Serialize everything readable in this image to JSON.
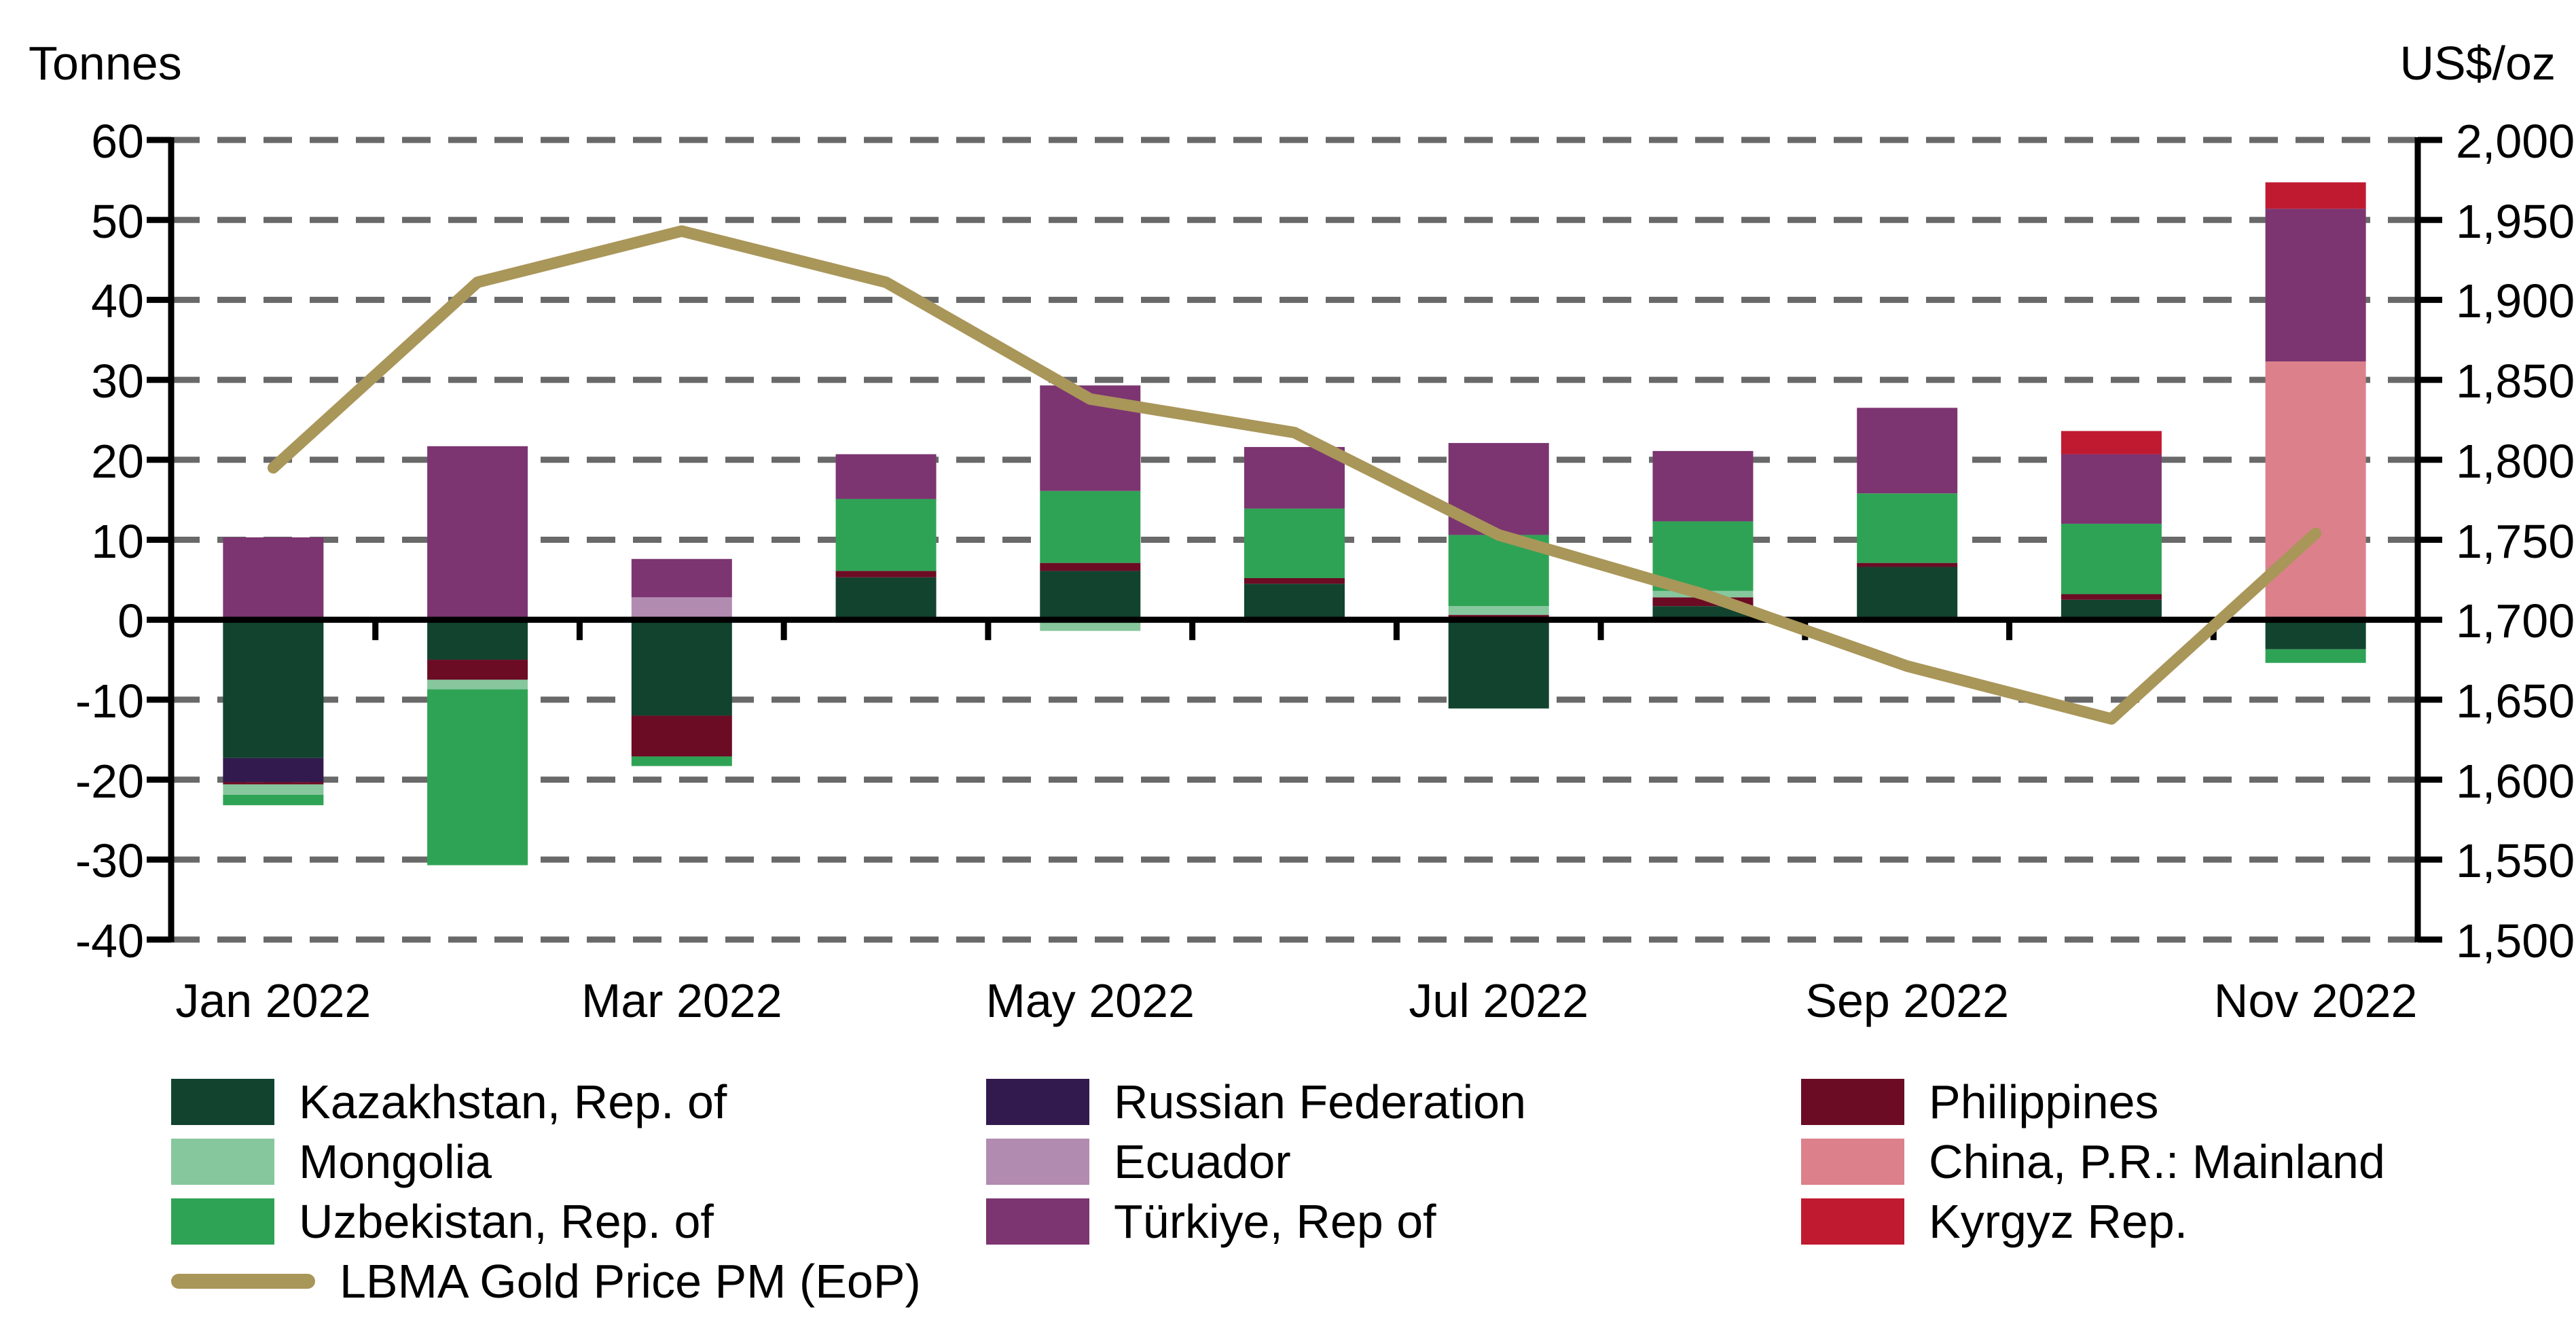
{
  "axes": {
    "left_title": "Tonnes",
    "right_title": "US$/oz",
    "left_tick_values": [
      60,
      50,
      40,
      30,
      20,
      10,
      0,
      -10,
      -20,
      -30,
      -40
    ],
    "left_tick_labels": [
      "60",
      "50",
      "40",
      "30",
      "20",
      "10",
      "0",
      "-10",
      "-20",
      "-30",
      "-40"
    ],
    "right_tick_values": [
      2000,
      1950,
      1900,
      1850,
      1800,
      1750,
      1700,
      1650,
      1600,
      1550,
      1500
    ],
    "right_tick_labels": [
      "2,000",
      "1,950",
      "1,900",
      "1,850",
      "1,800",
      "1,750",
      "1,700",
      "1,650",
      "1,600",
      "1,550",
      "1,500"
    ],
    "x_tick_labels": [
      "Jan 2022",
      "Mar 2022",
      "May 2022",
      "Jul 2022",
      "Sep 2022",
      "Nov 2022"
    ],
    "x_tick_category_indexes": [
      0,
      2,
      4,
      6,
      8,
      10
    ]
  },
  "chart_data": {
    "type": "bar",
    "subtype": "stacked-bars-with-right-axis-line",
    "categories": [
      "Jan 2022",
      "Feb 2022",
      "Mar 2022",
      "Apr 2022",
      "May 2022",
      "Jun 2022",
      "Jul 2022",
      "Aug 2022",
      "Sep 2022",
      "Oct 2022",
      "Nov 2022"
    ],
    "bar_unit": "Tonnes",
    "left_axis_range": [
      -40,
      60
    ],
    "right_axis_range": [
      1500,
      2000
    ],
    "grid": true,
    "legend_position": "bottom",
    "series": [
      {
        "name": "Kazakhstan, Rep. of",
        "key": "kazakhstan",
        "values": [
          -17.3,
          -5.0,
          -12.0,
          5.3,
          6.1,
          4.5,
          -11.1,
          1.7,
          6.6,
          2.5,
          -3.7
        ]
      },
      {
        "name": "Russian Federation",
        "key": "russia",
        "values": [
          -3.0,
          0,
          0,
          0,
          0,
          0,
          0,
          0,
          0,
          0,
          0
        ]
      },
      {
        "name": "Philippines",
        "key": "philippines",
        "values": [
          -0.3,
          -2.5,
          -5.1,
          0.8,
          1.0,
          0.7,
          0.6,
          1.1,
          0.5,
          0.7,
          0
        ]
      },
      {
        "name": "Mongolia",
        "key": "mongolia",
        "values": [
          -1.3,
          -1.2,
          0.1,
          0,
          -1.4,
          0,
          1.1,
          0.8,
          0,
          0,
          0
        ]
      },
      {
        "name": "Ecuador",
        "key": "ecuador",
        "values": [
          0,
          0,
          2.7,
          0,
          0,
          0,
          0,
          0,
          0,
          0,
          0
        ]
      },
      {
        "name": "China, P.R.: Mainland",
        "key": "china",
        "values": [
          0,
          0,
          0,
          0,
          0,
          0,
          0,
          0,
          0,
          0,
          32.3
        ]
      },
      {
        "name": "Uzbekistan, Rep. of",
        "key": "uzbekistan",
        "values": [
          -1.3,
          -22.0,
          -1.2,
          9.0,
          9.0,
          8.7,
          8.9,
          8.7,
          8.7,
          8.8,
          -1.7
        ]
      },
      {
        "name": "Türkiye, Rep of",
        "key": "turkiye",
        "values": [
          10.3,
          21.7,
          4.8,
          5.6,
          13.2,
          7.7,
          11.5,
          8.8,
          10.7,
          8.7,
          19.1
        ]
      },
      {
        "name": "Kyrgyz Rep.",
        "key": "kyrgyz",
        "values": [
          0,
          0,
          0,
          0,
          0,
          0,
          0,
          0,
          0,
          2.9,
          3.3
        ]
      }
    ],
    "line_series": {
      "name": "LBMA Gold Price PM (EoP)",
      "key": "lbma",
      "axis": "right",
      "unit": "US$/oz",
      "values": [
        1795,
        1911,
        1943,
        1911,
        1838,
        1817,
        1753,
        1716,
        1671,
        1638,
        1754
      ]
    }
  },
  "legend": {
    "columns": [
      {
        "items": [
          {
            "label": "Kazakhstan, Rep. of",
            "series": "kazakhstan",
            "type": "box"
          },
          {
            "label": "Mongolia",
            "series": "mongolia",
            "type": "box"
          },
          {
            "label": "Uzbekistan, Rep. of",
            "series": "uzbekistan",
            "type": "box"
          },
          {
            "label": "LBMA Gold Price PM (EoP)",
            "series": "lbma",
            "type": "line"
          }
        ]
      },
      {
        "items": [
          {
            "label": "Russian Federation",
            "series": "russia",
            "type": "box"
          },
          {
            "label": "Ecuador",
            "series": "ecuador",
            "type": "box"
          },
          {
            "label": "Türkiye, Rep of",
            "series": "turkiye",
            "type": "box"
          }
        ]
      },
      {
        "items": [
          {
            "label": "Philippines",
            "series": "philippines",
            "type": "box"
          },
          {
            "label": "China, P.R.: Mainland",
            "series": "china",
            "type": "box"
          },
          {
            "label": "Kyrgyz Rep.",
            "series": "kyrgyz",
            "type": "box"
          }
        ]
      }
    ]
  },
  "colors": {
    "kazakhstan": "#11432f",
    "russia": "#321a4e",
    "philippines": "#6b0b24",
    "mongolia": "#87c79e",
    "ecuador": "#b28bb1",
    "china": "#dc808b",
    "uzbekistan": "#2fa355",
    "turkiye": "#7c3571",
    "kyrgyz": "#c01a31",
    "lbma": "#a99659",
    "gridline": "#696969",
    "axis": "#000000"
  }
}
